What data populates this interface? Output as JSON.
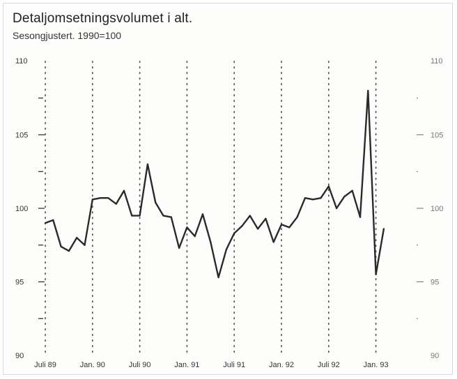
{
  "title": "Detaljomsetningsvolumet i alt.",
  "subtitle": "Sesongjustert. 1990=100",
  "colors": {
    "line": "#2a2a2a",
    "grid": "#444444",
    "axis": "#333333"
  },
  "chart_data": {
    "type": "line",
    "title": "Detaljomsetningsvolumet i alt.",
    "subtitle": "Sesongjustert. 1990=100",
    "xlabel": "",
    "ylabel": "",
    "ylim": [
      90,
      110
    ],
    "yticks": [
      90,
      95,
      100,
      105,
      110
    ],
    "grid": "vertical dotted lines at each labeled x tick",
    "x_tick_labels": [
      "Juli 89",
      "Jan. 90",
      "Juli 90",
      "Jan. 91",
      "Juli 91",
      "Jan. 92",
      "Juli 92",
      "Jan. 93"
    ],
    "x_tick_positions": [
      0,
      6,
      12,
      18,
      24,
      30,
      36,
      42
    ],
    "x_start": "Juli 89",
    "series": [
      {
        "values": [
          99.0,
          99.2,
          97.4,
          97.1,
          98.0,
          97.5,
          100.6,
          100.7,
          100.7,
          100.3,
          101.2,
          99.5,
          99.5,
          103.0,
          100.4,
          99.5,
          99.4,
          97.3,
          98.7,
          98.1,
          99.6,
          97.7,
          95.3,
          97.2,
          98.3,
          98.8,
          99.5,
          98.6,
          99.3,
          97.7,
          98.9,
          98.7,
          99.4,
          100.7,
          100.6,
          100.7,
          101.5,
          100.0,
          100.8,
          101.2,
          99.4,
          108.0,
          95.5,
          98.6
        ]
      }
    ]
  }
}
